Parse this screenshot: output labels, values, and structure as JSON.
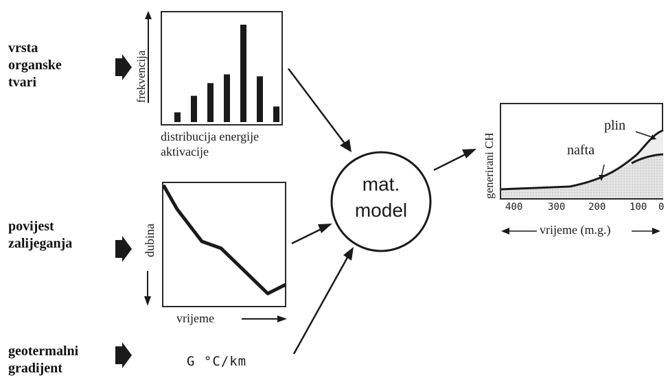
{
  "inputs": {
    "organic_matter": "vrsta\norganske\ntvari",
    "burial_history": "povijest\nzalijeganja",
    "geothermal_gradient": "geotermalni\ngradijent"
  },
  "histogram": {
    "ylabel": "frekvencija",
    "xlabel": "distribucija energije\naktivacije",
    "relative_heights": [
      0.1,
      0.27,
      0.4,
      0.49,
      1.0,
      0.47,
      0.16
    ]
  },
  "burial_plot": {
    "ylabel": "dubina",
    "xlabel": "vrijeme"
  },
  "geothermal": {
    "text": "G °C/km"
  },
  "model": {
    "line1": "mat.",
    "line2": "model"
  },
  "output_chart": {
    "ylabel": "generirani CH",
    "xlabel": "vrijeme (m.g.)",
    "ticks": [
      "400",
      "300",
      "200",
      "100",
      "0"
    ],
    "labels": {
      "gas": "plin",
      "oil": "nafta"
    }
  },
  "colors": {
    "ink": "#1a1a1a",
    "fill": "#d8d8d8"
  }
}
